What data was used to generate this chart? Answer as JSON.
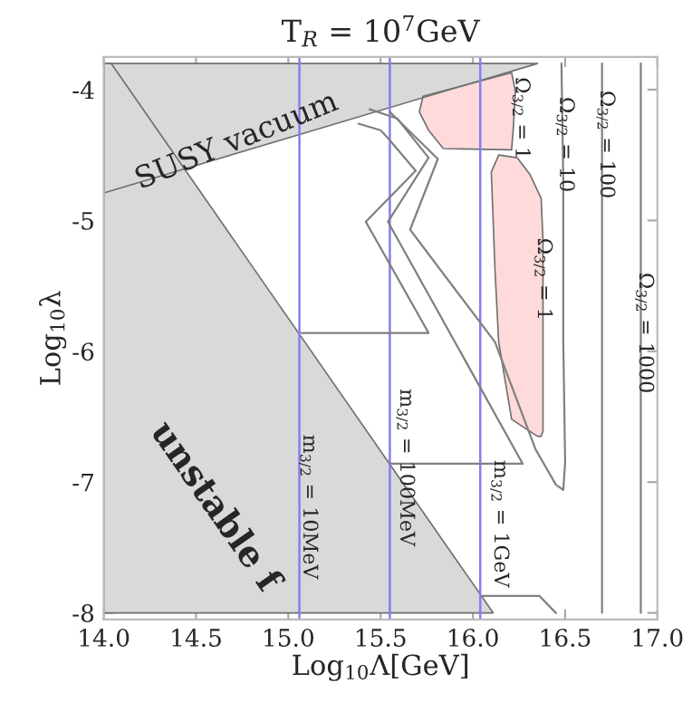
{
  "chart_data": {
    "type": "line",
    "title": "T$_{R}$ = 10$^{7}$GeV",
    "xlabel": "Log$_{10}$Λ[GeV]",
    "ylabel": "Log$_{10}$λ",
    "xlim": [
      14,
      17
    ],
    "ylim": [
      -8.05,
      -3.75
    ],
    "xticks": [
      {
        "value": 14,
        "label": "14.0"
      },
      {
        "value": 14.5,
        "label": "14.5"
      },
      {
        "value": 15,
        "label": "15.0"
      },
      {
        "value": 15.5,
        "label": "15.5"
      },
      {
        "value": 16,
        "label": "16.0"
      },
      {
        "value": 16.5,
        "label": "16.5"
      },
      {
        "value": 17,
        "label": "17.0"
      }
    ],
    "yticks": [
      -8,
      -7,
      -6,
      -5,
      -4
    ],
    "grid": false,
    "legend": false,
    "series": [
      {
        "type": "area",
        "color": "#d9d9d9",
        "x": [
          14.0,
          16.35,
          14.0
        ],
        "values": [
          -4.79,
          -3.8,
          -3.8
        ]
      },
      {
        "type": "area",
        "color": "#d9d9d9",
        "x": [
          14.0,
          14.04,
          16.11,
          14.0
        ],
        "values": [
          -3.8,
          -3.8,
          -8.0,
          -8.0
        ]
      },
      {
        "type": "area",
        "color": "#ffdada",
        "x": [
          15.73,
          15.71,
          15.76,
          15.84,
          16.21,
          16.22,
          16.23,
          16.21
        ],
        "values": [
          -4.05,
          -4.17,
          -4.31,
          -4.45,
          -4.46,
          -4.28,
          -4.01,
          -3.87
        ]
      },
      {
        "type": "area",
        "color": "#ffdada",
        "x": [
          16.14,
          16.24,
          16.31,
          16.37,
          16.38,
          16.38,
          16.38,
          16.37,
          16.35,
          16.21,
          16.14,
          16.12,
          16.1
        ],
        "values": [
          -4.5,
          -4.52,
          -4.65,
          -4.83,
          -5.15,
          -6.07,
          -6.61,
          -6.65,
          -6.65,
          -6.52,
          -5.93,
          -5.38,
          -4.63
        ]
      },
      {
        "color": "#808080",
        "x": [
          15.55,
          15.81,
          15.66,
          16.12,
          16.34,
          16.45,
          16.49,
          16.5,
          16.49,
          16.49,
          16.48
        ],
        "values": [
          -4.17,
          -4.53,
          -5.07,
          -5.93,
          -6.75,
          -7.02,
          -7.06,
          -6.85,
          -5.93,
          -4.69,
          -3.8
        ]
      },
      {
        "color": "#808080",
        "x": [
          15.44,
          15.59,
          15.76,
          15.54,
          16.27,
          15.55
        ],
        "values": [
          -4.15,
          -4.22,
          -4.52,
          -5.01,
          -6.86,
          -6.86
        ]
      },
      {
        "color": "#808080",
        "x": [
          15.38,
          15.5,
          15.54,
          15.69,
          15.42,
          15.76,
          15.07
        ],
        "values": [
          -4.26,
          -4.31,
          -4.37,
          -4.62,
          -5.01,
          -5.86,
          -5.86
        ]
      },
      {
        "color": "#808080",
        "x": [
          16.05,
          16.36,
          16.45
        ],
        "values": [
          -7.87,
          -7.87,
          -8.0
        ]
      },
      {
        "color": "#808080",
        "x": [
          16.7,
          16.7
        ],
        "values": [
          -3.8,
          -8.0
        ]
      },
      {
        "color": "#808080",
        "x": [
          16.91,
          16.91
        ],
        "values": [
          -3.8,
          -8.0
        ]
      }
    ],
    "ref_lines": [
      {
        "axis": "x",
        "value": 15.06,
        "color": "#8080ee"
      },
      {
        "axis": "x",
        "value": 15.55,
        "color": "#8080ee"
      },
      {
        "axis": "x",
        "value": 16.04,
        "color": "#8080ee"
      }
    ],
    "annotations": [
      "SUSY vacuum",
      "unstable f",
      {
        "text": "Ω$_{3/2}$ = 1",
        "x": 16.26,
        "y": -4.22
      },
      {
        "text": "Ω$_{3/2}$ = 10",
        "x": 16.5,
        "y": -4.42
      },
      {
        "text": "Ω$_{3/2}$ = 100",
        "x": 16.72,
        "y": -4.42
      },
      {
        "text": "Ω$_{3/2}$ = 1",
        "x": 16.38,
        "y": -5.45
      },
      {
        "text": "Ω$_{3/2}$ = 1000",
        "x": 16.93,
        "y": -5.86
      },
      "m$_{3/2}$ = 10MeV",
      "m$_{3/2}$ = 100MeV",
      "m$_{3/2}$ = 1GeV"
    ]
  }
}
